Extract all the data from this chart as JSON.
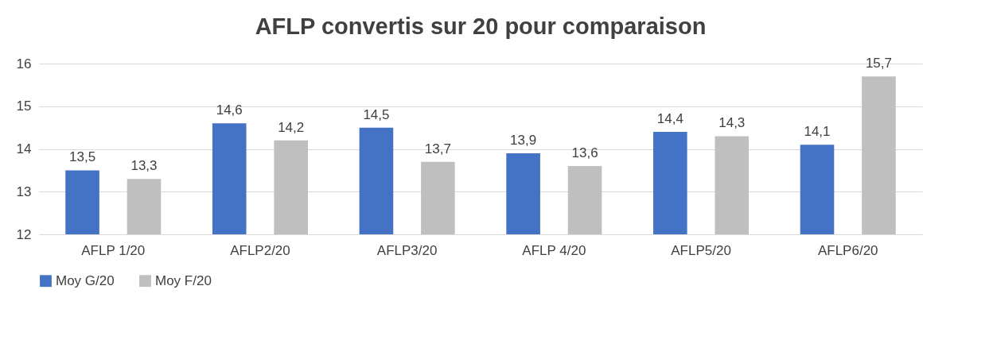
{
  "chart_data": {
    "type": "bar",
    "title": "AFLP convertis sur 20 pour comparaison",
    "categories": [
      "AFLP 1/20",
      "AFLP2/20",
      "AFLP3/20",
      "AFLP 4/20",
      "AFLP5/20",
      "AFLP6/20"
    ],
    "series": [
      {
        "name": "Moy G/20",
        "color": "#4472c4",
        "values": [
          13.5,
          14.6,
          14.5,
          13.9,
          14.4,
          14.1
        ],
        "value_labels": [
          "13,5",
          "14,6",
          "14,5",
          "13,9",
          "14,4",
          "14,1"
        ]
      },
      {
        "name": "Moy F/20",
        "color": "#bfbfbf",
        "values": [
          13.3,
          14.2,
          13.7,
          13.6,
          14.3,
          15.7
        ],
        "value_labels": [
          "13,3",
          "14,2",
          "13,7",
          "13,6",
          "14,3",
          "15,7"
        ]
      }
    ],
    "ylim": [
      12,
      16
    ],
    "yticks": [
      12,
      13,
      14,
      15,
      16
    ],
    "grid": "y",
    "legend": "bottom"
  }
}
